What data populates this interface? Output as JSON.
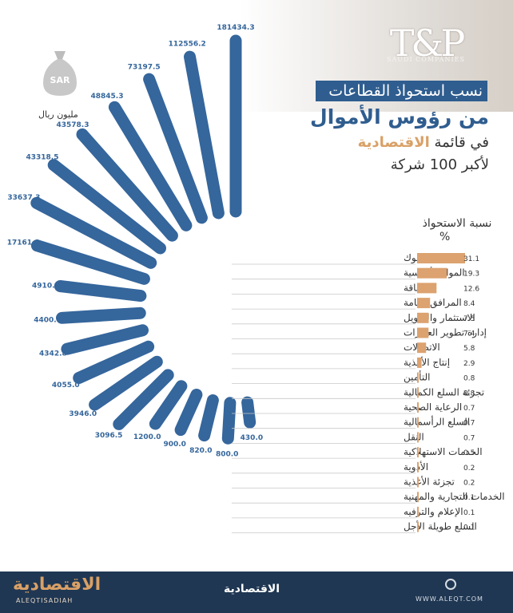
{
  "header": {
    "logo_main": "T&P",
    "logo_sub": "SAUDI COMPANIES",
    "title_line1": "نسب استحواذ القطاعات",
    "title_line2": "من رؤوس الأموال",
    "title_line3_prefix": "في قائمة",
    "title_line3_accent": "الاقتصادية",
    "title_line4": "لأكبر 100 شركة"
  },
  "unit": {
    "icon_text": "SAR",
    "label": "مليون ريال"
  },
  "share_header": {
    "label": "نسبة الاستحواذ",
    "percent_sign": "%"
  },
  "colors": {
    "capital_bar": "#35669c",
    "share_bar": "#dca26f",
    "title_box": "#2f5d8f",
    "footer": "#1f3753",
    "accent": "#d9a066"
  },
  "chart_data": {
    "type": "bar",
    "categories": [
      "البنوك",
      "المواد الأساسية",
      "الطاقة",
      "المرافق العامة",
      "الاستثمار والتمويل",
      "إدارة تطوير العقارات",
      "الاتصالات",
      "إنتاج الأغذية",
      "التأمين",
      "تجزئة السلع الكمالية",
      "الرعاية الصحية",
      "السلع الرأسمالية",
      "النقل",
      "الخدمات الاستهلاكية",
      "الأدوية",
      "تجزئة الأغذية",
      "الخدمات التجارية والمهنية",
      "الإعلام والترفيه",
      "السلع طويلة الأجل"
    ],
    "series": [
      {
        "values": [
          181434.3,
          112556.2,
          73197.5,
          48845.3,
          43578.3,
          43318.5,
          33637.3,
          17161.8,
          4910.0,
          4400.0,
          4342.8,
          4055.0,
          3946.0,
          3096.5,
          1200.0,
          900.0,
          820.0,
          800.0,
          430.0
        ]
      },
      {
        "values": [
          31.1,
          19.3,
          12.6,
          8.4,
          7.5,
          7.4,
          5.8,
          2.9,
          0.8,
          0.8,
          0.7,
          0.7,
          0.7,
          0.5,
          0.2,
          0.2,
          0.1,
          0.1,
          0.1
        ]
      }
    ],
    "capital_labels": [
      "181434.3",
      "112556.2",
      "73197.5",
      "48845.3",
      "43578.3",
      "43318.5",
      "33637.3",
      "17161.8",
      "4910.0",
      "4400.0",
      "4342.8",
      "4055.0",
      "3946.0",
      "3096.5",
      "1200.0",
      "900.0",
      "820.0",
      "800.0",
      "430.0"
    ],
    "share_labels": [
      "31.1",
      "19.3",
      "12.6",
      "8.4",
      "7.5",
      "7.4",
      "5.8",
      "2.9",
      "0.8",
      "0.8",
      "0.7",
      "0.7",
      "0.7",
      "0.5",
      "0.2",
      "0.2",
      "0.1",
      "0.1",
      "0.1"
    ]
  },
  "footer": {
    "brand_left": "الاقتصادية",
    "brand_left_sub": "ALEQTISADIAH",
    "brand_center": "الاقتصادية",
    "url": "WWW.ALEQT.COM"
  }
}
